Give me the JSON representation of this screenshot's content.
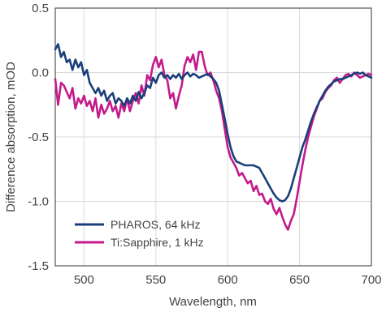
{
  "chart_data": {
    "type": "line",
    "xlabel": "Wavelength, nm",
    "ylabel": "Difference absorption, mOD",
    "xlim": [
      480,
      700
    ],
    "ylim": [
      -1.5,
      0.5
    ],
    "xticks": [
      500,
      550,
      600,
      650,
      700
    ],
    "xtick_labels": [
      "500",
      "550",
      "600",
      "650",
      "700"
    ],
    "yticks": [
      0.5,
      0.0,
      -0.5,
      -1.0,
      -1.5
    ],
    "ytick_labels": [
      "0.5",
      "0.0",
      "-0.5",
      "-1.0",
      "-1.5"
    ],
    "grid": true,
    "legend_position": "bottom-left",
    "series": [
      {
        "name": "PHAROS, 64 kHz",
        "color": "#1a3f7a",
        "x": [
          480,
          482,
          484,
          486,
          488,
          490,
          492,
          494,
          496,
          498,
          500,
          502,
          504,
          506,
          508,
          510,
          512,
          514,
          516,
          518,
          520,
          522,
          524,
          526,
          528,
          530,
          532,
          534,
          536,
          538,
          540,
          542,
          544,
          546,
          548,
          550,
          552,
          554,
          556,
          558,
          560,
          562,
          564,
          566,
          568,
          570,
          572,
          574,
          576,
          578,
          580,
          582,
          584,
          586,
          588,
          590,
          592,
          594,
          596,
          598,
          600,
          602,
          604,
          606,
          608,
          610,
          612,
          614,
          616,
          618,
          620,
          622,
          624,
          626,
          628,
          630,
          632,
          634,
          636,
          638,
          640,
          642,
          644,
          646,
          648,
          650,
          652,
          654,
          656,
          658,
          660,
          662,
          664,
          666,
          668,
          670,
          672,
          674,
          676,
          678,
          680,
          682,
          684,
          686,
          688,
          690,
          692,
          694,
          696,
          698,
          700
        ],
        "y": [
          0.18,
          0.22,
          0.12,
          0.16,
          0.08,
          0.1,
          0.02,
          0.1,
          0.04,
          0.08,
          -0.02,
          0.02,
          -0.08,
          -0.12,
          -0.16,
          -0.12,
          -0.18,
          -0.14,
          -0.22,
          -0.18,
          -0.16,
          -0.24,
          -0.2,
          -0.22,
          -0.26,
          -0.2,
          -0.24,
          -0.18,
          -0.22,
          -0.15,
          -0.2,
          -0.16,
          -0.1,
          -0.12,
          -0.04,
          -0.08,
          -0.02,
          0.0,
          -0.04,
          -0.02,
          -0.05,
          -0.02,
          -0.04,
          -0.01,
          -0.05,
          -0.02,
          0.0,
          -0.03,
          -0.01,
          -0.02,
          -0.04,
          -0.03,
          -0.02,
          -0.01,
          -0.03,
          -0.05,
          -0.08,
          -0.14,
          -0.25,
          -0.36,
          -0.48,
          -0.58,
          -0.65,
          -0.69,
          -0.7,
          -0.71,
          -0.72,
          -0.72,
          -0.72,
          -0.72,
          -0.73,
          -0.74,
          -0.78,
          -0.82,
          -0.86,
          -0.9,
          -0.94,
          -0.97,
          -0.99,
          -1.0,
          -0.99,
          -0.96,
          -0.9,
          -0.82,
          -0.74,
          -0.66,
          -0.58,
          -0.52,
          -0.45,
          -0.38,
          -0.32,
          -0.27,
          -0.22,
          -0.18,
          -0.14,
          -0.11,
          -0.09,
          -0.07,
          -0.06,
          -0.05,
          -0.05,
          -0.04,
          -0.03,
          -0.02,
          -0.01,
          0.0,
          -0.01,
          0.0,
          -0.02,
          -0.03,
          -0.04
        ]
      },
      {
        "name": "Ti:Sapphire, 1 kHz",
        "color": "#c41a8c",
        "x": [
          480,
          482,
          484,
          486,
          488,
          490,
          492,
          494,
          496,
          498,
          500,
          502,
          504,
          506,
          508,
          510,
          512,
          514,
          516,
          518,
          520,
          522,
          524,
          526,
          528,
          530,
          532,
          534,
          536,
          538,
          540,
          542,
          544,
          546,
          548,
          550,
          552,
          554,
          556,
          558,
          560,
          562,
          564,
          566,
          568,
          570,
          572,
          574,
          576,
          578,
          580,
          582,
          584,
          586,
          588,
          590,
          592,
          594,
          596,
          598,
          600,
          602,
          604,
          606,
          608,
          610,
          612,
          614,
          616,
          618,
          620,
          622,
          624,
          626,
          628,
          630,
          632,
          634,
          636,
          638,
          640,
          642,
          644,
          646,
          648,
          650,
          652,
          654,
          656,
          658,
          660,
          662,
          664,
          666,
          668,
          670,
          672,
          674,
          676,
          678,
          680,
          682,
          684,
          686,
          688,
          690,
          692,
          694,
          696,
          698,
          700
        ],
        "y": [
          -0.05,
          -0.25,
          -0.08,
          -0.1,
          -0.15,
          -0.2,
          -0.12,
          -0.28,
          -0.2,
          -0.24,
          -0.18,
          -0.26,
          -0.22,
          -0.3,
          -0.2,
          -0.35,
          -0.25,
          -0.32,
          -0.28,
          -0.22,
          -0.3,
          -0.26,
          -0.35,
          -0.24,
          -0.3,
          -0.2,
          -0.3,
          -0.22,
          -0.16,
          -0.24,
          -0.1,
          -0.18,
          -0.02,
          -0.06,
          0.06,
          0.12,
          0.04,
          0.1,
          -0.02,
          -0.06,
          -0.2,
          -0.16,
          -0.28,
          -0.18,
          -0.1,
          0.05,
          0.12,
          0.08,
          0.14,
          0.02,
          0.16,
          0.16,
          0.05,
          -0.02,
          0.0,
          -0.06,
          -0.14,
          -0.2,
          -0.3,
          -0.44,
          -0.58,
          -0.66,
          -0.7,
          -0.74,
          -0.8,
          -0.78,
          -0.82,
          -0.86,
          -0.84,
          -0.92,
          -0.88,
          -0.95,
          -0.94,
          -1.0,
          -1.02,
          -0.98,
          -1.06,
          -1.1,
          -1.05,
          -1.12,
          -1.18,
          -1.22,
          -1.15,
          -1.1,
          -0.98,
          -0.85,
          -0.72,
          -0.6,
          -0.5,
          -0.42,
          -0.34,
          -0.28,
          -0.22,
          -0.2,
          -0.15,
          -0.12,
          -0.1,
          -0.06,
          -0.04,
          -0.08,
          -0.05,
          -0.02,
          -0.01,
          -0.03,
          0.0,
          -0.02,
          -0.04,
          -0.03,
          -0.02,
          -0.01,
          -0.02
        ]
      }
    ]
  }
}
